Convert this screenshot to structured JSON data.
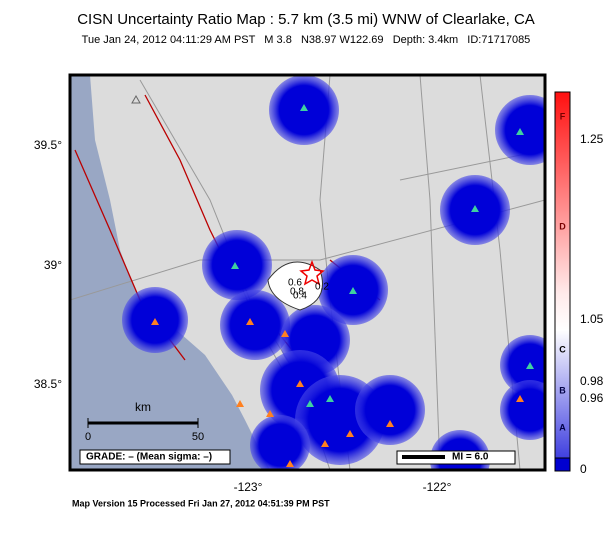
{
  "title": "CISN Uncertainty Ratio Map : 5.7 km (3.5 mi) WNW of Clearlake, CA",
  "subtitle": "Tue Jan 24, 2012 04:11:29 AM PST   M 3.8   N38.97 W122.69   Depth: 3.4km   ID:71717085",
  "lat_labels": [
    "39.5°",
    "39°",
    "38.5°"
  ],
  "lon_labels": [
    "-123°",
    "-122°"
  ],
  "contour_labels": [
    "0.6",
    "0.8",
    "0.2",
    "0.4"
  ],
  "colorbar": {
    "ticks": [
      "1.25",
      "1.05",
      "0.98",
      "0.96",
      "0"
    ],
    "grades": [
      "F",
      "D",
      "C",
      "B",
      "A"
    ]
  },
  "scale": {
    "unit": "km",
    "start": "0",
    "end": "50"
  },
  "grade": "GRADE: – (Mean sigma: –)",
  "legend": "MI = 6.0",
  "footer": "Map Version 15 Processed Fri Jan 27, 2012 04:51:39 PM PST"
}
